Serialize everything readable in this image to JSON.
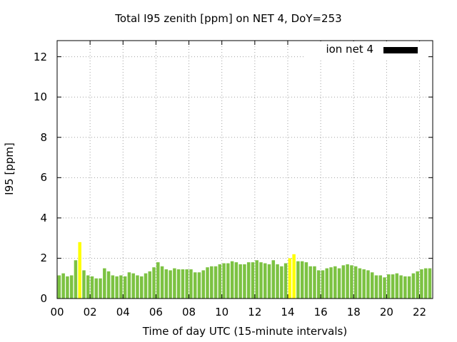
{
  "chart_data": {
    "type": "bar",
    "title": "Total I95 zenith [ppm] on NET 4, DoY=253",
    "xlabel": "Time of day UTC (15-minute intervals)",
    "ylabel": "I95 [ppm]",
    "ylim": [
      0,
      12.8
    ],
    "xlim": [
      0,
      22.8
    ],
    "yticks": [
      "0",
      "2",
      "4",
      "6",
      "8",
      "10",
      "12"
    ],
    "xticks": [
      "00",
      "02",
      "04",
      "06",
      "08",
      "10",
      "12",
      "14",
      "16",
      "18",
      "20",
      "22"
    ],
    "grid": true,
    "legend": {
      "entries": [
        "ion net 4"
      ],
      "position": "top-right"
    },
    "colors": {
      "normal": "#7cc242",
      "highlight": "#ffff00",
      "legend_swatch": "#000000",
      "grid": "#a0a0a0"
    },
    "series": [
      {
        "x": [
          0.0,
          0.25,
          0.5,
          0.75,
          1.0,
          1.25,
          1.5,
          1.75,
          2.0,
          2.25,
          2.5,
          2.75,
          3.0,
          3.25,
          3.5,
          3.75,
          4.0,
          4.25,
          4.5,
          4.75,
          5.0,
          5.25,
          5.5,
          5.75,
          6.0,
          6.25,
          6.5,
          6.75,
          7.0,
          7.25,
          7.5,
          7.75,
          8.0,
          8.25,
          8.5,
          8.75,
          9.0,
          9.25,
          9.5,
          9.75,
          10.0,
          10.25,
          10.5,
          10.75,
          11.0,
          11.25,
          11.5,
          11.75,
          12.0,
          12.25,
          12.5,
          12.75,
          13.0,
          13.25,
          13.5,
          13.75,
          14.0,
          14.25,
          14.5,
          14.75,
          15.0,
          15.25,
          15.5,
          15.75,
          16.0,
          16.25,
          16.5,
          16.75,
          17.0,
          17.25,
          17.5,
          17.75,
          18.0,
          18.25,
          18.5,
          18.75,
          19.0,
          19.25,
          19.5,
          19.75,
          20.0,
          20.25,
          20.5,
          20.75,
          21.0,
          21.25,
          21.5,
          21.75,
          22.0,
          22.25,
          22.5
        ],
        "values": [
          1.15,
          1.25,
          1.1,
          1.15,
          1.9,
          2.8,
          1.4,
          1.15,
          1.1,
          1.0,
          1.0,
          1.5,
          1.35,
          1.15,
          1.1,
          1.15,
          1.1,
          1.3,
          1.25,
          1.15,
          1.1,
          1.25,
          1.35,
          1.55,
          1.8,
          1.6,
          1.45,
          1.4,
          1.5,
          1.45,
          1.45,
          1.45,
          1.45,
          1.3,
          1.3,
          1.4,
          1.55,
          1.6,
          1.6,
          1.7,
          1.75,
          1.75,
          1.85,
          1.8,
          1.7,
          1.7,
          1.8,
          1.8,
          1.9,
          1.8,
          1.75,
          1.7,
          1.9,
          1.7,
          1.6,
          1.75,
          2.0,
          2.2,
          1.85,
          1.85,
          1.8,
          1.6,
          1.6,
          1.4,
          1.4,
          1.5,
          1.55,
          1.6,
          1.5,
          1.65,
          1.7,
          1.65,
          1.6,
          1.5,
          1.45,
          1.4,
          1.3,
          1.15,
          1.15,
          1.05,
          1.2,
          1.2,
          1.25,
          1.15,
          1.1,
          1.1,
          1.25,
          1.35,
          1.45,
          1.5,
          1.5
        ],
        "highlight_x": [
          1.25,
          14.0,
          14.25
        ]
      }
    ]
  }
}
